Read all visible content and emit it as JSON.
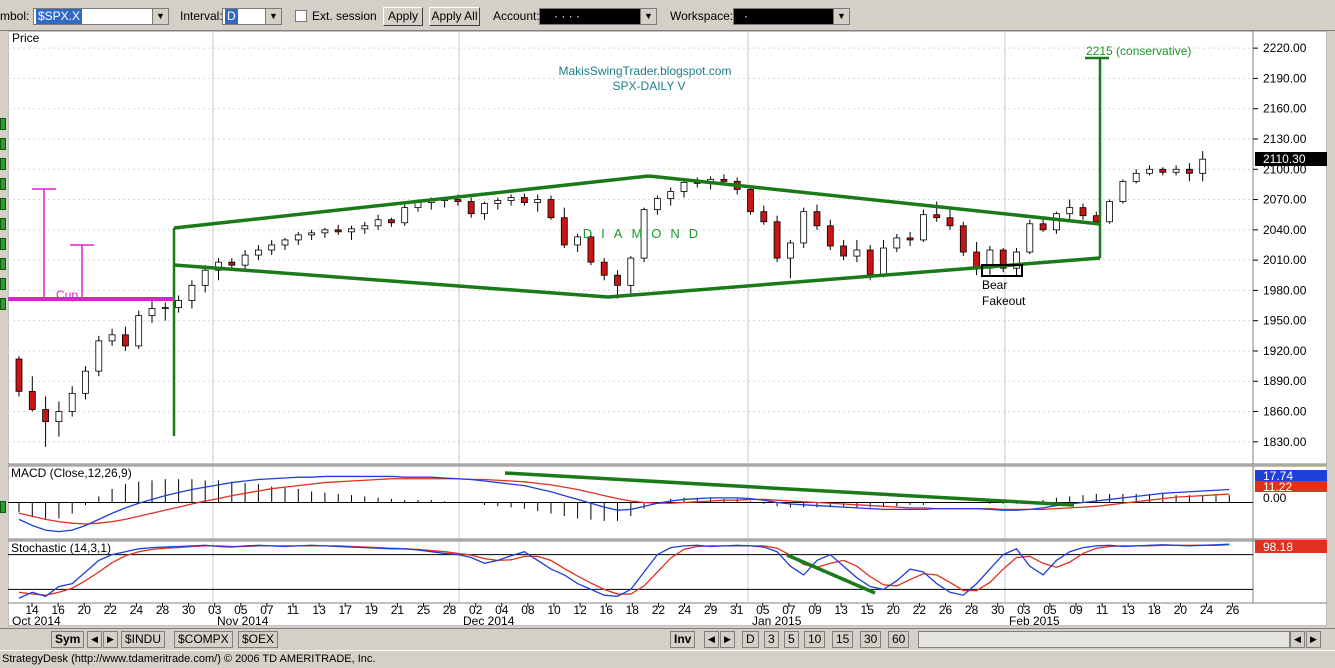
{
  "toolbar": {
    "symbol_label": "mbol:",
    "symbol_value": "$SPX.X",
    "interval_label": "Interval:",
    "interval_value": "D",
    "ext_session_label": "Ext. session",
    "apply_label": "Apply",
    "apply_all_label": "Apply All",
    "account_label": "Account:",
    "account_value": "·   ·   ·   ·",
    "workspace_label": "Workspace:",
    "workspace_value": "·"
  },
  "bottom": {
    "sym_tab": "Sym",
    "tabs": [
      "$INDU",
      "$COMPX",
      "$OEX"
    ],
    "inv_tab": "Inv",
    "periods": [
      "D",
      "3",
      "5",
      "10",
      "15",
      "30",
      "60"
    ]
  },
  "status": "StrategyDesk (http://www.tdameritrade.com/) © 2006 TD AMERITRADE, Inc.",
  "chart_data": [
    {
      "type": "candlestick",
      "title": "Price",
      "annotations": [
        "MakisSwingTrader.blogspot.com",
        "SPX-DAILY  V",
        "DIAMOND",
        "2215 (conservative)",
        "Cup",
        "Bear",
        "Fakeout"
      ],
      "last_price": "2110.30",
      "ylim": [
        1810,
        2235
      ],
      "yticks": [
        1830,
        1860,
        1890,
        1920,
        1950,
        1980,
        2010,
        2040,
        2070,
        2100,
        2130,
        2160,
        2190,
        2220
      ],
      "x_tick_labels": [
        "14",
        "16",
        "20",
        "22",
        "24",
        "28",
        "30",
        "03",
        "05",
        "07",
        "11",
        "13",
        "17",
        "19",
        "21",
        "25",
        "28",
        "02",
        "04",
        "08",
        "10",
        "12",
        "16",
        "18",
        "22",
        "24",
        "29",
        "31",
        "05",
        "07",
        "09",
        "13",
        "15",
        "20",
        "22",
        "26",
        "28",
        "30",
        "03",
        "05",
        "09",
        "11",
        "13",
        "18",
        "20",
        "24",
        "26"
      ],
      "x_month_labels": [
        "Oct 2014",
        "Nov 2014",
        "Dec 2014",
        "Jan 2015",
        "Feb 2015"
      ],
      "candles": [
        [
          1912,
          1915,
          1875,
          1880
        ],
        [
          1880,
          1895,
          1860,
          1862
        ],
        [
          1862,
          1875,
          1825,
          1850
        ],
        [
          1850,
          1870,
          1835,
          1860
        ],
        [
          1860,
          1885,
          1855,
          1878
        ],
        [
          1878,
          1905,
          1872,
          1900
        ],
        [
          1900,
          1935,
          1895,
          1930
        ],
        [
          1930,
          1942,
          1925,
          1936
        ],
        [
          1936,
          1944,
          1920,
          1925
        ],
        [
          1925,
          1960,
          1922,
          1955
        ],
        [
          1955,
          1970,
          1948,
          1962
        ],
        [
          1962,
          1968,
          1950,
          1963
        ],
        [
          1963,
          1975,
          1958,
          1970
        ],
        [
          1970,
          1990,
          1962,
          1985
        ],
        [
          1985,
          2005,
          1978,
          2000
        ],
        [
          2000,
          2012,
          1990,
          2008
        ],
        [
          2008,
          2012,
          2000,
          2005
        ],
        [
          2005,
          2020,
          2000,
          2015
        ],
        [
          2015,
          2025,
          2010,
          2020
        ],
        [
          2020,
          2030,
          2015,
          2025
        ],
        [
          2025,
          2032,
          2020,
          2030
        ],
        [
          2030,
          2038,
          2025,
          2035
        ],
        [
          2035,
          2040,
          2030,
          2037
        ],
        [
          2037,
          2042,
          2032,
          2040
        ],
        [
          2040,
          2045,
          2035,
          2038
        ],
        [
          2038,
          2044,
          2030,
          2041
        ],
        [
          2041,
          2048,
          2036,
          2044
        ],
        [
          2044,
          2055,
          2040,
          2050
        ],
        [
          2050,
          2052,
          2043,
          2047
        ],
        [
          2047,
          2065,
          2044,
          2062
        ],
        [
          2062,
          2070,
          2058,
          2067
        ],
        [
          2067,
          2072,
          2060,
          2069
        ],
        [
          2069,
          2072,
          2062,
          2070
        ],
        [
          2070,
          2075,
          2064,
          2068
        ],
        [
          2068,
          2072,
          2052,
          2056
        ],
        [
          2056,
          2068,
          2050,
          2066
        ],
        [
          2066,
          2072,
          2060,
          2069
        ],
        [
          2069,
          2075,
          2064,
          2072
        ],
        [
          2072,
          2076,
          2064,
          2067
        ],
        [
          2067,
          2075,
          2058,
          2070
        ],
        [
          2070,
          2074,
          2050,
          2052
        ],
        [
          2052,
          2062,
          2022,
          2025
        ],
        [
          2025,
          2036,
          2018,
          2033
        ],
        [
          2033,
          2038,
          2005,
          2008
        ],
        [
          2008,
          2012,
          1990,
          1995
        ],
        [
          1995,
          2000,
          1972,
          1985
        ],
        [
          1985,
          2014,
          1975,
          2012
        ],
        [
          2012,
          2062,
          2008,
          2060
        ],
        [
          2060,
          2074,
          2055,
          2071
        ],
        [
          2071,
          2082,
          2064,
          2078
        ],
        [
          2078,
          2090,
          2072,
          2087
        ],
        [
          2087,
          2092,
          2082,
          2086
        ],
        [
          2086,
          2093,
          2080,
          2090
        ],
        [
          2090,
          2095,
          2085,
          2088
        ],
        [
          2088,
          2092,
          2075,
          2080
        ],
        [
          2080,
          2082,
          2055,
          2058
        ],
        [
          2058,
          2064,
          2045,
          2048
        ],
        [
          2048,
          2054,
          2008,
          2012
        ],
        [
          2012,
          2030,
          1992,
          2027
        ],
        [
          2027,
          2062,
          2022,
          2058
        ],
        [
          2058,
          2065,
          2040,
          2044
        ],
        [
          2044,
          2050,
          2020,
          2024
        ],
        [
          2024,
          2030,
          2010,
          2014
        ],
        [
          2014,
          2030,
          2008,
          2020
        ],
        [
          2020,
          2025,
          1990,
          1996
        ],
        [
          1996,
          2030,
          1993,
          2022
        ],
        [
          2022,
          2036,
          2018,
          2032
        ],
        [
          2032,
          2038,
          2024,
          2030
        ],
        [
          2030,
          2060,
          2028,
          2055
        ],
        [
          2055,
          2068,
          2048,
          2052
        ],
        [
          2052,
          2060,
          2040,
          2044
        ],
        [
          2044,
          2048,
          2014,
          2018
        ],
        [
          2018,
          2028,
          1995,
          2002
        ],
        [
          2002,
          2024,
          1994,
          2020
        ],
        [
          2020,
          2022,
          1998,
          2002
        ],
        [
          2002,
          2022,
          1994,
          2018
        ],
        [
          2018,
          2050,
          2016,
          2046
        ],
        [
          2046,
          2052,
          2038,
          2040
        ],
        [
          2040,
          2058,
          2036,
          2056
        ],
        [
          2056,
          2070,
          2050,
          2062
        ],
        [
          2062,
          2066,
          2050,
          2054
        ],
        [
          2054,
          2058,
          2045,
          2048
        ],
        [
          2048,
          2070,
          2046,
          2068
        ],
        [
          2068,
          2090,
          2066,
          2088
        ],
        [
          2088,
          2100,
          2086,
          2096
        ],
        [
          2096,
          2104,
          2094,
          2100
        ],
        [
          2100,
          2102,
          2094,
          2097
        ],
        [
          2097,
          2104,
          2094,
          2100
        ],
        [
          2100,
          2106,
          2088,
          2096
        ],
        [
          2096,
          2118,
          2088,
          2110
        ]
      ]
    },
    {
      "type": "line",
      "title": "MACD (Close,12,26,9)",
      "last_values": [
        "17.74",
        "11.22",
        "0.00"
      ],
      "series": [
        {
          "name": "MACD",
          "values": [
            -22,
            -30,
            -36,
            -38,
            -36,
            -30,
            -22,
            -14,
            -7,
            -1,
            4,
            9,
            13,
            17,
            20,
            23,
            26,
            28,
            30,
            31,
            32,
            33,
            33,
            34,
            34,
            34,
            34,
            34,
            34,
            33,
            33,
            33,
            32,
            31,
            30,
            28,
            26,
            24,
            22,
            18,
            14,
            9,
            4,
            -1,
            -6,
            -10,
            -9,
            -5,
            -1,
            2,
            4,
            5,
            6,
            6,
            6,
            5,
            3,
            0,
            -2,
            -3,
            -4,
            -5,
            -6,
            -7,
            -8,
            -9,
            -9,
            -9,
            -9,
            -8,
            -8,
            -8,
            -8,
            -9,
            -10,
            -10,
            -9,
            -7,
            -4,
            -2,
            0,
            2,
            4,
            6,
            8,
            10,
            12,
            13,
            14,
            15,
            16,
            17
          ]
        },
        {
          "name": "Signal",
          "values": [
            -14,
            -18,
            -22,
            -25,
            -27,
            -28,
            -27,
            -25,
            -22,
            -18,
            -14,
            -10,
            -6,
            -2,
            2,
            5,
            9,
            12,
            15,
            18,
            20,
            22,
            24,
            26,
            27,
            28,
            29,
            30,
            31,
            31,
            31,
            31,
            31,
            31,
            30,
            30,
            29,
            28,
            27,
            25,
            23,
            20,
            17,
            13,
            9,
            5,
            2,
            0,
            -1,
            -1,
            0,
            1,
            2,
            3,
            3,
            4,
            4,
            3,
            2,
            1,
            0,
            -1,
            -2,
            -3,
            -4,
            -5,
            -6,
            -7,
            -7,
            -8,
            -8,
            -8,
            -8,
            -8,
            -9,
            -9,
            -9,
            -9,
            -8,
            -7,
            -6,
            -5,
            -3,
            -1,
            1,
            3,
            5,
            7,
            8,
            9,
            10,
            11
          ]
        }
      ]
    },
    {
      "type": "line",
      "title": "Stochastic (14,3,1)",
      "last_value": "98.18",
      "series": [
        {
          "name": "%K",
          "values": [
            5,
            15,
            8,
            25,
            30,
            50,
            70,
            80,
            85,
            90,
            92,
            93,
            94,
            95,
            96,
            94,
            93,
            95,
            96,
            95,
            94,
            95,
            96,
            95,
            94,
            93,
            92,
            91,
            90,
            90,
            88,
            85,
            82,
            80,
            75,
            65,
            70,
            78,
            85,
            70,
            55,
            45,
            30,
            20,
            10,
            8,
            20,
            50,
            80,
            92,
            95,
            96,
            94,
            95,
            96,
            95,
            93,
            85,
            60,
            45,
            70,
            80,
            60,
            40,
            25,
            20,
            35,
            55,
            50,
            30,
            15,
            10,
            30,
            55,
            80,
            90,
            60,
            45,
            70,
            85,
            92,
            95,
            96,
            94,
            95,
            96,
            97,
            96,
            95,
            96,
            97,
            98
          ]
        },
        {
          "name": "%D",
          "values": [
            15,
            12,
            10,
            15,
            22,
            35,
            50,
            66,
            78,
            85,
            89,
            91,
            92,
            94,
            95,
            95,
            94,
            94,
            95,
            95,
            95,
            95,
            95,
            95,
            95,
            94,
            93,
            92,
            91,
            90,
            89,
            87,
            85,
            82,
            79,
            73,
            70,
            71,
            77,
            77,
            70,
            56,
            43,
            31,
            20,
            12,
            12,
            26,
            50,
            74,
            89,
            94,
            95,
            95,
            95,
            95,
            95,
            91,
            79,
            63,
            58,
            65,
            70,
            60,
            42,
            28,
            26,
            37,
            47,
            45,
            32,
            18,
            18,
            32,
            55,
            75,
            77,
            65,
            58,
            67,
            82,
            91,
            94,
            95,
            95,
            95,
            96,
            96,
            96,
            96,
            96,
            97
          ]
        }
      ]
    }
  ]
}
